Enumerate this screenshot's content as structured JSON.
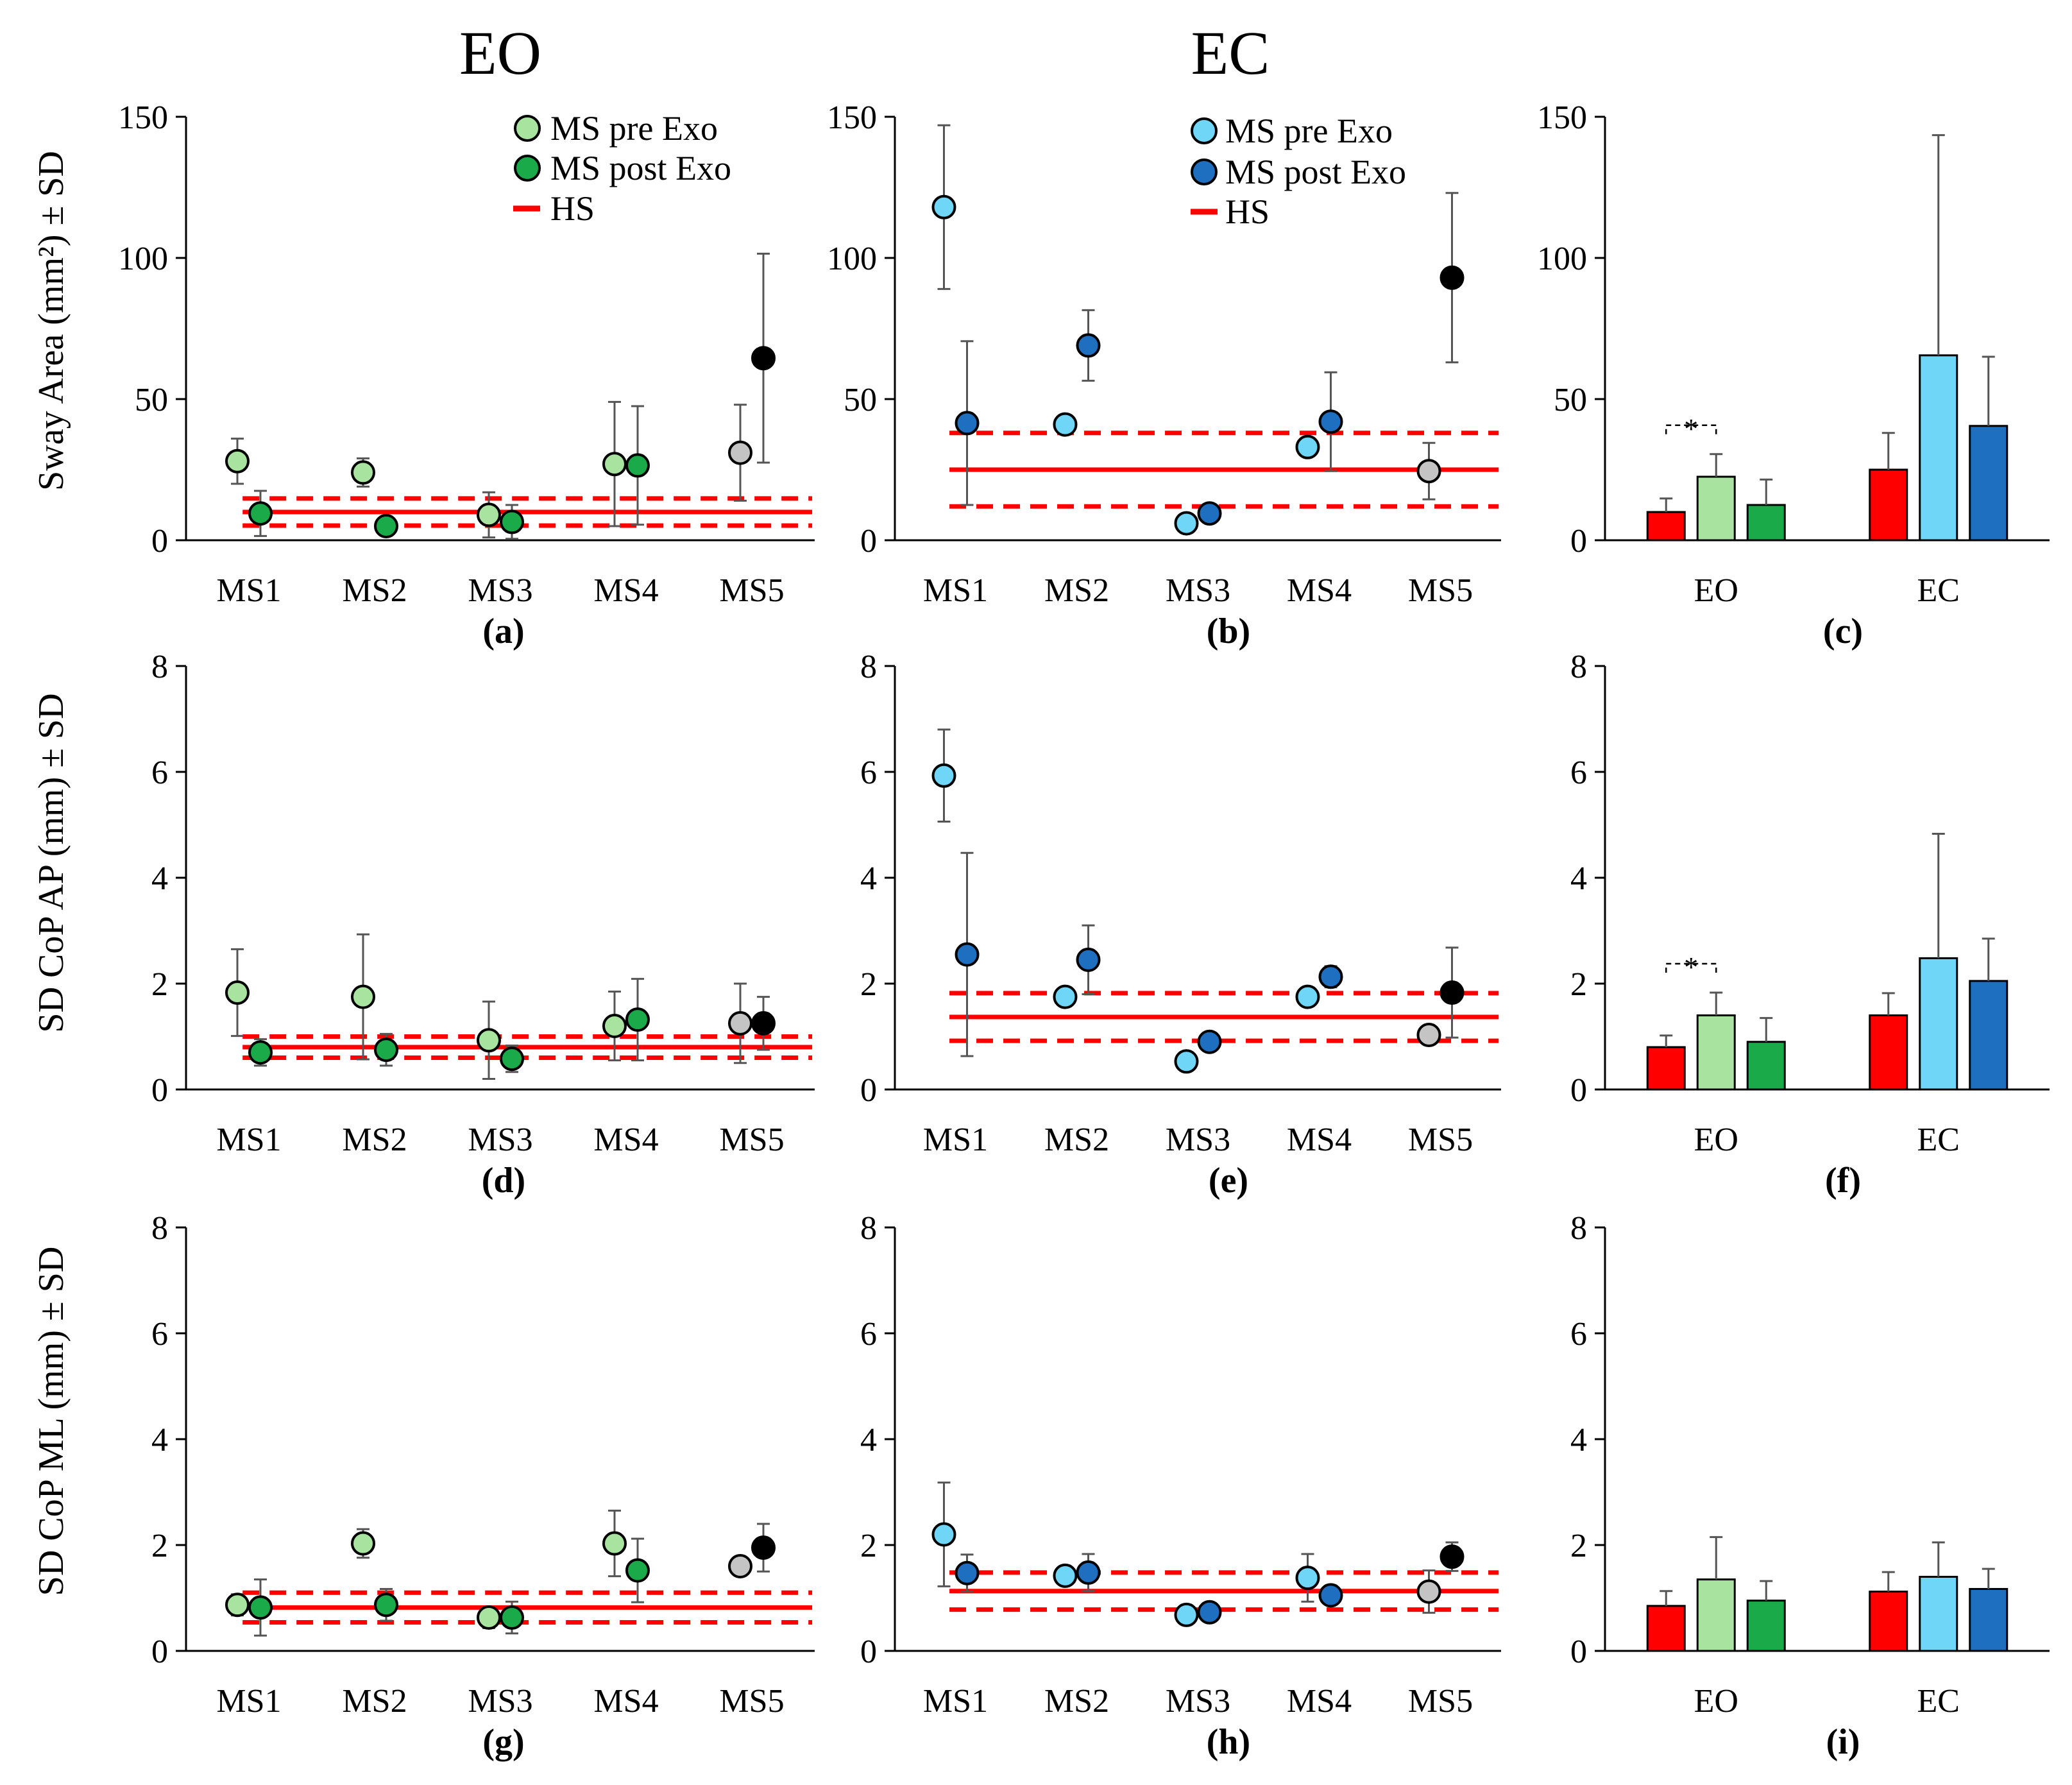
{
  "figure": {
    "column_titles": [
      "EO",
      "EC"
    ],
    "legend_eo": {
      "pre": "MS pre Exo",
      "post": "MS post Exo",
      "hs": "HS"
    },
    "legend_ec": {
      "pre": "MS pre Exo",
      "post": "MS post Exo",
      "hs": "HS"
    },
    "row_ylabels": [
      "Sway Area (mm²) ± SD",
      "SD CoP AP (mm) ± SD",
      "SD CoP ML (mm) ± SD"
    ],
    "significance": "*"
  },
  "colors": {
    "eo_pre": "#a8e4a0",
    "eo_post": "#1aaa4a",
    "ec_pre": "#6fd6f7",
    "ec_post": "#1e6fbf",
    "ms5_pre": "#c4c4c4",
    "ms5_post": "#000000",
    "hs": "#ff0000"
  },
  "chart_data": [
    {
      "panel": "(a)",
      "type": "scatter",
      "condition": "EO",
      "ylabel": "Sway Area (mm²) ± SD",
      "ylim": [
        0,
        150
      ],
      "yticks": [
        0,
        50,
        100,
        150
      ],
      "categories": [
        "MS1",
        "MS2",
        "MS3",
        "MS4",
        "MS5"
      ],
      "series": [
        {
          "name": "MS pre Exo",
          "values": [
            28,
            24,
            9,
            27,
            31
          ],
          "sd": [
            8,
            5,
            8,
            22,
            17
          ]
        },
        {
          "name": "MS post Exo",
          "values": [
            9.5,
            5,
            6.5,
            26.5,
            64.5
          ],
          "sd": [
            8,
            0,
            6,
            21,
            37
          ]
        }
      ],
      "hs": {
        "name": "HS",
        "mean": 10,
        "sd": 4.8
      }
    },
    {
      "panel": "(b)",
      "type": "scatter",
      "condition": "EC",
      "ylim": [
        0,
        150
      ],
      "yticks": [
        0,
        50,
        100,
        150
      ],
      "categories": [
        "MS1",
        "MS2",
        "MS3",
        "MS4",
        "MS5"
      ],
      "series": [
        {
          "name": "MS pre Exo",
          "values": [
            118,
            41,
            6,
            33,
            24.5
          ],
          "sd": [
            29,
            0,
            0,
            0,
            10
          ]
        },
        {
          "name": "MS post Exo",
          "values": [
            41.5,
            69,
            9.5,
            42,
            93
          ],
          "sd": [
            29,
            12.5,
            0,
            17.5,
            30
          ]
        }
      ],
      "hs": {
        "name": "HS",
        "mean": 25,
        "sd": 13
      }
    },
    {
      "panel": "(c)",
      "type": "bar",
      "ylim": [
        0,
        150
      ],
      "yticks": [
        0,
        50,
        100,
        150
      ],
      "categories": [
        "EO",
        "EC"
      ],
      "series": [
        {
          "name": "HS",
          "values": [
            10,
            25
          ],
          "sd": [
            4.8,
            13
          ]
        },
        {
          "name": "MS pre Exo",
          "values": [
            22.5,
            65.5
          ],
          "sd": [
            8,
            78
          ]
        },
        {
          "name": "MS post Exo",
          "values": [
            12.5,
            40.5
          ],
          "sd": [
            9,
            24.5
          ]
        }
      ],
      "significance": "EO: MS pre Exo vs HS, p<0.05 (*)"
    },
    {
      "panel": "(d)",
      "type": "scatter",
      "condition": "EO",
      "ylabel": "SD CoP AP (mm) ± SD",
      "ylim": [
        0,
        8
      ],
      "yticks": [
        0,
        2,
        4,
        6,
        8
      ],
      "categories": [
        "MS1",
        "MS2",
        "MS3",
        "MS4",
        "MS5"
      ],
      "series": [
        {
          "name": "MS pre Exo",
          "values": [
            1.83,
            1.75,
            0.93,
            1.2,
            1.25
          ],
          "sd": [
            0.82,
            1.18,
            0.73,
            0.65,
            0.75
          ]
        },
        {
          "name": "MS post Exo",
          "values": [
            0.7,
            0.75,
            0.58,
            1.32,
            1.25
          ],
          "sd": [
            0.25,
            0.3,
            0.25,
            0.77,
            0.5
          ]
        }
      ],
      "hs": {
        "name": "HS",
        "mean": 0.8,
        "sd": 0.2
      }
    },
    {
      "panel": "(e)",
      "type": "scatter",
      "condition": "EC",
      "ylim": [
        0,
        8
      ],
      "yticks": [
        0,
        2,
        4,
        6,
        8
      ],
      "categories": [
        "MS1",
        "MS2",
        "MS3",
        "MS4",
        "MS5"
      ],
      "series": [
        {
          "name": "MS pre Exo",
          "values": [
            5.93,
            1.75,
            0.53,
            1.75,
            1.03
          ],
          "sd": [
            0.87,
            0,
            0,
            0,
            0
          ]
        },
        {
          "name": "MS post Exo",
          "values": [
            2.55,
            2.45,
            0.9,
            2.13,
            1.83
          ],
          "sd": [
            1.92,
            0.65,
            0.15,
            0.2,
            0.85
          ]
        }
      ],
      "hs": {
        "name": "HS",
        "mean": 1.37,
        "sd": 0.45
      }
    },
    {
      "panel": "(f)",
      "type": "bar",
      "ylim": [
        0,
        8
      ],
      "yticks": [
        0,
        2,
        4,
        6,
        8
      ],
      "categories": [
        "EO",
        "EC"
      ],
      "series": [
        {
          "name": "HS",
          "values": [
            0.8,
            1.4
          ],
          "sd": [
            0.22,
            0.42
          ]
        },
        {
          "name": "MS pre Exo",
          "values": [
            1.4,
            2.48
          ],
          "sd": [
            0.43,
            2.35
          ]
        },
        {
          "name": "MS post Exo",
          "values": [
            0.9,
            2.05
          ],
          "sd": [
            0.45,
            0.8
          ]
        }
      ],
      "significance": "EO: MS pre Exo vs HS, p<0.05 (*)"
    },
    {
      "panel": "(g)",
      "type": "scatter",
      "condition": "EO",
      "ylabel": "SD CoP ML (mm) ± SD",
      "ylim": [
        0,
        8
      ],
      "yticks": [
        0,
        2,
        4,
        6,
        8
      ],
      "categories": [
        "MS1",
        "MS2",
        "MS3",
        "MS4",
        "MS5"
      ],
      "series": [
        {
          "name": "MS pre Exo",
          "values": [
            0.87,
            2.03,
            0.63,
            2.03,
            1.6
          ],
          "sd": [
            0.2,
            0.27,
            0.2,
            0.62,
            0
          ]
        },
        {
          "name": "MS post Exo",
          "values": [
            0.82,
            0.87,
            0.63,
            1.52,
            1.95
          ],
          "sd": [
            0.53,
            0.3,
            0.3,
            0.6,
            0.45
          ]
        }
      ],
      "hs": {
        "name": "HS",
        "mean": 0.82,
        "sd": 0.28
      }
    },
    {
      "panel": "(h)",
      "type": "scatter",
      "condition": "EC",
      "ylim": [
        0,
        8
      ],
      "yticks": [
        0,
        2,
        4,
        6,
        8
      ],
      "categories": [
        "MS1",
        "MS2",
        "MS3",
        "MS4",
        "MS5"
      ],
      "series": [
        {
          "name": "MS pre Exo",
          "values": [
            2.2,
            1.42,
            0.68,
            1.38,
            1.12
          ],
          "sd": [
            0.98,
            0,
            0,
            0.45,
            0.4
          ]
        },
        {
          "name": "MS post Exo",
          "values": [
            1.47,
            1.48,
            0.73,
            1.05,
            1.78
          ],
          "sd": [
            0.35,
            0.35,
            0,
            0,
            0.27
          ]
        }
      ],
      "hs": {
        "name": "HS",
        "mean": 1.13,
        "sd": 0.35
      }
    },
    {
      "panel": "(i)",
      "type": "bar",
      "ylim": [
        0,
        8
      ],
      "yticks": [
        0,
        2,
        4,
        6,
        8
      ],
      "categories": [
        "EO",
        "EC"
      ],
      "series": [
        {
          "name": "HS",
          "values": [
            0.85,
            1.12
          ],
          "sd": [
            0.28,
            0.37
          ]
        },
        {
          "name": "MS pre Exo",
          "values": [
            1.35,
            1.4
          ],
          "sd": [
            0.8,
            0.65
          ]
        },
        {
          "name": "MS post Exo",
          "values": [
            0.95,
            1.17
          ],
          "sd": [
            0.37,
            0.38
          ]
        }
      ]
    }
  ]
}
